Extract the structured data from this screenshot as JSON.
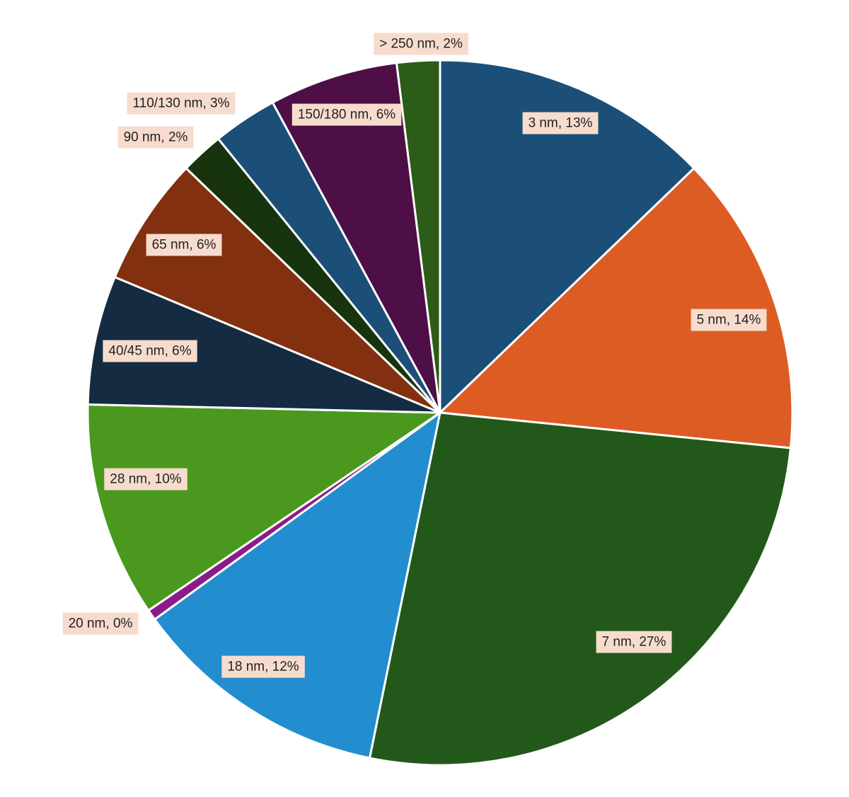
{
  "chart_data": {
    "type": "pie",
    "title": "",
    "start_angle_deg": 0,
    "direction": "clockwise",
    "slices": [
      {
        "name": "3 nm",
        "value": 13,
        "label": "3 nm, 13%",
        "color": "#1b4f78"
      },
      {
        "name": "5 nm",
        "value": 14,
        "label": "5 nm, 14%",
        "color": "#dd5c24"
      },
      {
        "name": "7 nm",
        "value": 27,
        "label": "7 nm, 27%",
        "color": "#22591a"
      },
      {
        "name": "18 nm",
        "value": 12,
        "label": "18 nm, 12%",
        "color": "#228ecf"
      },
      {
        "name": "20 nm",
        "value": 0.5,
        "label": "20 nm, 0%",
        "color": "#8a1c8a"
      },
      {
        "name": "28 nm",
        "value": 10,
        "label": "28 nm, 10%",
        "color": "#4a991e"
      },
      {
        "name": "40/45 nm",
        "value": 6,
        "label": "40/45 nm, 6%",
        "color": "#142b42"
      },
      {
        "name": "65 nm",
        "value": 6,
        "label": "65 nm, 6%",
        "color": "#82300f"
      },
      {
        "name": "90 nm",
        "value": 2,
        "label": "90 nm, 2%",
        "color": "#18340f"
      },
      {
        "name": "110/130 nm",
        "value": 3,
        "label": "110/130 nm, 3%",
        "color": "#1b4f78"
      },
      {
        "name": "150/180 nm",
        "value": 6,
        "label": "150/180 nm, 6%",
        "color": "#4d0f45"
      },
      {
        "name": "> 250 nm",
        "value": 2,
        "label": "> 250 nm, 2%",
        "color": "#2c5c17"
      }
    ],
    "label_style": {
      "background": "#f7dccd",
      "text_color": "#222222"
    }
  }
}
